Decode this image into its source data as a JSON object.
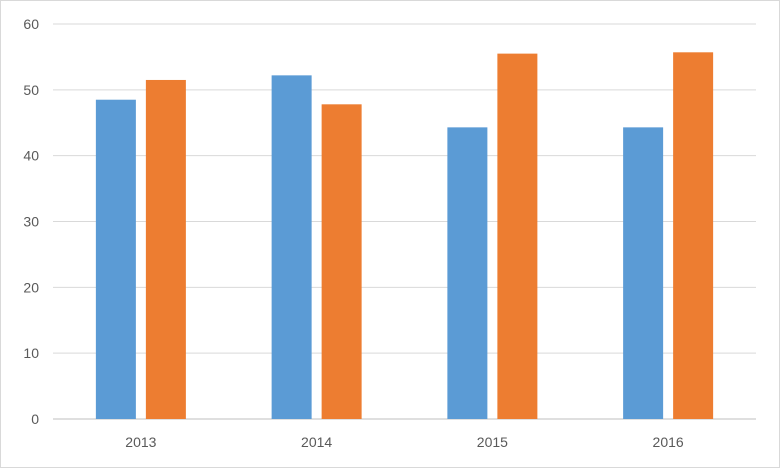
{
  "chart_data": {
    "type": "bar",
    "categories": [
      "2013",
      "2014",
      "2015",
      "2016"
    ],
    "series": [
      {
        "color": "#5b9bd5",
        "values": [
          48.5,
          52.2,
          44.3,
          44.3
        ]
      },
      {
        "color": "#ed7d31",
        "values": [
          51.5,
          47.8,
          55.5,
          55.7
        ]
      }
    ],
    "ylim": [
      0,
      60
    ],
    "yticks": [
      0,
      10,
      20,
      30,
      40,
      50,
      60
    ],
    "grid": true,
    "legend": "none",
    "title": "",
    "xlabel": "",
    "ylabel": ""
  }
}
